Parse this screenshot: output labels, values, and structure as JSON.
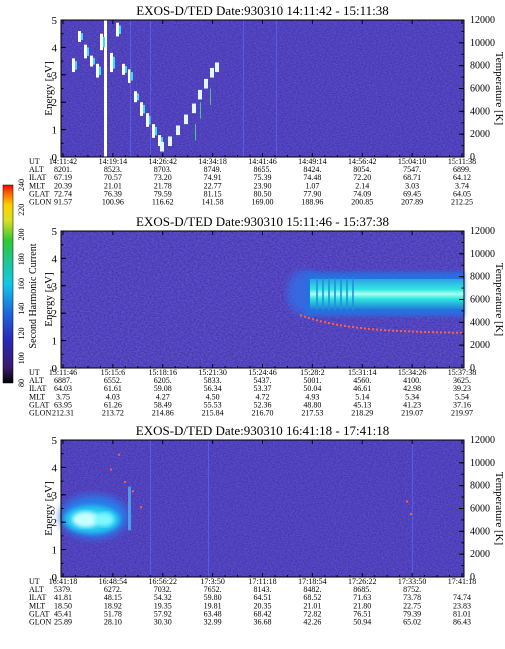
{
  "colors": {
    "background": "#3a2aa8",
    "noise_light": "#4a3ed0",
    "noise_dark": "#2a1c90",
    "hot": "#ffffff",
    "warm": "#00c8ff",
    "track": "#ff6040",
    "frame": "#000000"
  },
  "chart_data": [
    {
      "type": "heatmap",
      "title": "EXOS-D/TED  Date:930310  14:11:42 - 15:11:38",
      "ylabel": "Energy [eV]",
      "y2label": "Temperature [K]",
      "ylim": [
        0,
        5
      ],
      "y2lim": [
        0,
        12000
      ],
      "yticks": [
        "0",
        "1",
        "2",
        "3",
        "4",
        "5"
      ],
      "y2ticks": [
        "0",
        "2000",
        "4000",
        "6000",
        "8000",
        "10000",
        "12000"
      ],
      "ephemeris": {
        "labels": [
          "UT",
          "ALT",
          "ILAT",
          "MLT",
          "GLAT",
          "GLON"
        ],
        "columns": [
          [
            "14:11:42",
            "8201.",
            "67.19",
            "20.39",
            "72.74",
            "91.57"
          ],
          [
            "14:19:14",
            "8523.",
            "70.57",
            "21.01",
            "76.39",
            "100.96"
          ],
          [
            "14:26:42",
            "8703.",
            "73.20",
            "21.78",
            "79.59",
            "116.62"
          ],
          [
            "14:34:18",
            "8749.",
            "74.91",
            "22.77",
            "81.15",
            "141.58"
          ],
          [
            "14:41:46",
            "8655.",
            "75.39",
            "23.90",
            "80.50",
            "169.00"
          ],
          [
            "14:49:14",
            "8424.",
            "74.48",
            "1.07",
            "77.90",
            "188.96"
          ],
          [
            "14:56:42",
            "8054.",
            "72.20",
            "2.14",
            "74.09",
            "200.85"
          ],
          [
            "15:04:10",
            "7547.",
            "68.71",
            "3.03",
            "69.45",
            "207.89"
          ],
          [
            "15:11:38",
            "6899.",
            "64.12",
            "3.74",
            "64.05",
            "212.25"
          ]
        ]
      }
    },
    {
      "type": "heatmap",
      "title": "EXOS-D/TED  Date:930310  15:11:46 - 15:37:38",
      "ylabel": "Energy [eV]",
      "y2label": "Temperature [K]",
      "ylim": [
        0,
        5
      ],
      "y2lim": [
        0,
        12000
      ],
      "yticks": [
        "0",
        "1",
        "2",
        "3",
        "4",
        "5"
      ],
      "y2ticks": [
        "0",
        "2000",
        "4000",
        "6000",
        "8000",
        "10000",
        "12000"
      ],
      "ephemeris": {
        "labels": [
          "UT",
          "ALT",
          "ILAT",
          "MLT",
          "GLAT",
          "GLON"
        ],
        "columns": [
          [
            "15:11:46",
            "6887.",
            "64.03",
            "3.75",
            "63.95",
            "212.31"
          ],
          [
            "15:15:6",
            "6552.",
            "61.61",
            "4.03",
            "61.26",
            "213.72"
          ],
          [
            "15:18:16",
            "6205.",
            "59.08",
            "4.27",
            "58.49",
            "214.86"
          ],
          [
            "15:21:30",
            "5833.",
            "56.34",
            "4.50",
            "55.53",
            "215.84"
          ],
          [
            "15:24:46",
            "5437.",
            "53.37",
            "4.72",
            "52.36",
            "216.70"
          ],
          [
            "15:28:2",
            "5001.",
            "50.04",
            "4.93",
            "48.80",
            "217.53"
          ],
          [
            "15:31:14",
            "4560.",
            "46.61",
            "5.14",
            "45.13",
            "218.29"
          ],
          [
            "15:34:26",
            "4100.",
            "42.98",
            "5.34",
            "41.23",
            "219.07"
          ],
          [
            "15:37:38",
            "3625.",
            "39.23",
            "5.54",
            "37.16",
            "219.97"
          ]
        ]
      },
      "colorbar": {
        "label": "Second Harmonic Current",
        "ticks": [
          "80",
          "100",
          "120",
          "140",
          "160",
          "180",
          "200",
          "220",
          "240"
        ]
      }
    },
    {
      "type": "heatmap",
      "title": "EXOS-D/TED  Date:930310  16:41:18 - 17:41:18",
      "ylabel": "Energy [eV]",
      "y2label": "Temperature [K]",
      "ylim": [
        0,
        5
      ],
      "y2lim": [
        0,
        12000
      ],
      "yticks": [
        "0",
        "1",
        "2",
        "3",
        "4",
        "5"
      ],
      "y2ticks": [
        "0",
        "2000",
        "4000",
        "6000",
        "8000",
        "10000",
        "12000"
      ],
      "ephemeris": {
        "labels": [
          "UT",
          "ALT",
          "ILAT",
          "MLT",
          "GLAT",
          "GLON"
        ],
        "columns": [
          [
            "16:41:18",
            "5379.",
            "41.81",
            "18.50",
            "45.41",
            "25.89"
          ],
          [
            "16:48:54",
            "6272.",
            "48.15",
            "18.92",
            "51.78",
            "28.10"
          ],
          [
            "16:56:22",
            "7032.",
            "54.32",
            "19.35",
            "57.92",
            "30.30"
          ],
          [
            "17:3:50",
            "7652.",
            "59.80",
            "19.81",
            "63.48",
            "32.99"
          ],
          [
            "17:11:18",
            "8143.",
            "64.51",
            "20.35",
            "68.42",
            "36.68"
          ],
          [
            "17:18:54",
            "8482.",
            "68.52",
            "21.01",
            "72.82",
            "42.26"
          ],
          [
            "17:26:22",
            "8685.",
            "71.63",
            "21.80",
            "76.51",
            "50.94"
          ],
          [
            "17:33:50",
            "8752.",
            "73.78",
            "22.75",
            "79.39",
            "65.02"
          ],
          [
            "17:41:18",
            "",
            "74.74",
            "23.83",
            "81.01",
            "86.43"
          ]
        ]
      }
    }
  ]
}
